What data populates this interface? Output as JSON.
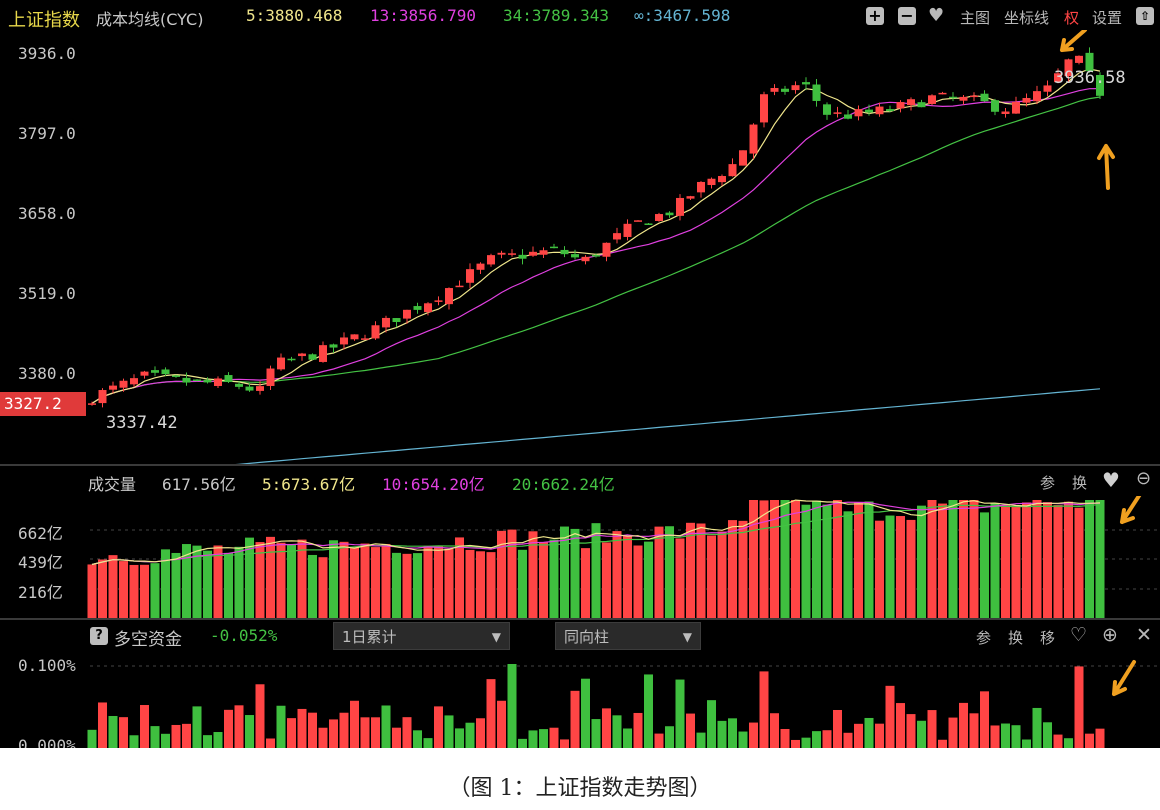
{
  "header": {
    "title": "上证指数",
    "indicator": "成本均线(CYC)",
    "ma5": "5:3880.468",
    "ma13": "13:3856.790",
    "ma34": "34:3789.343",
    "mainf": "∞:3467.598",
    "toolbar": [
      "主图",
      "坐标线",
      "权",
      "设置"
    ]
  },
  "main_chart": {
    "y_labels": [
      "3936.0",
      "3797.0",
      "3658.0",
      "3519.0",
      "3380.0"
    ],
    "current_price_tag": "3327.2",
    "high_label": "3936.58",
    "low_label": "3337.42"
  },
  "volume": {
    "title": "成交量",
    "total": "617.56亿",
    "ma5": "5:673.67亿",
    "ma10": "10:654.20亿",
    "ma20": "20:662.24亿",
    "y_labels": [
      "662亿",
      "439亿",
      "216亿"
    ],
    "tools": [
      "参",
      "换"
    ]
  },
  "capital": {
    "help": "?",
    "title": "多空资金",
    "value": "-0.052%",
    "dropdown1": "1日累计",
    "dropdown2": "同向柱",
    "tools": [
      "参",
      "换",
      "移"
    ],
    "y_labels": [
      "0.100%",
      "0.000%"
    ]
  },
  "colors": {
    "up": "#ff4545",
    "down": "#3fbf3f",
    "ma5": "#f0e68c",
    "ma13": "#e040e0",
    "ma34": "#44c244",
    "mainf": "#64b4d2",
    "accent": "#f0a020"
  },
  "caption": "（图 1：上证指数走势图）"
}
